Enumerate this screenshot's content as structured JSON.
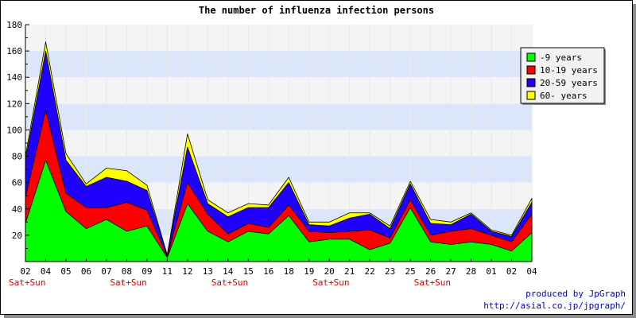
{
  "chart_data": {
    "type": "area",
    "stacked": true,
    "title": "The number of influenza infection persons",
    "xlabel": "",
    "ylabel": "",
    "ylim": [
      0,
      180
    ],
    "yticks": [
      20,
      40,
      60,
      80,
      100,
      120,
      140,
      160,
      180
    ],
    "grid": "horizontal bands",
    "legend_position": "right",
    "categories": [
      "02",
      "04",
      "05",
      "06",
      "07",
      "08",
      "09",
      "11",
      "12",
      "13",
      "14",
      "15",
      "16",
      "18",
      "19",
      "20",
      "21",
      "22",
      "23",
      "25",
      "26",
      "27",
      "28",
      "01",
      "02",
      "04"
    ],
    "weekend_labels": [
      {
        "index": 0,
        "text": "Sat+Sun"
      },
      {
        "index": 5,
        "text": "Sat+Sun"
      },
      {
        "index": 10,
        "text": "Sat+Sun"
      },
      {
        "index": 15,
        "text": "Sat+Sun"
      },
      {
        "index": 20,
        "text": "Sat+Sun"
      }
    ],
    "series": [
      {
        "name": "-9 years",
        "color": "#00ff00",
        "values": [
          29,
          77,
          38,
          25,
          32,
          23,
          27,
          3,
          44,
          23,
          15,
          23,
          21,
          35,
          15,
          17,
          17,
          9,
          14,
          41,
          15,
          13,
          15,
          13,
          8,
          22
        ]
      },
      {
        "name": "10-19 years",
        "color": "#ff0000",
        "values": [
          20,
          38,
          14,
          16,
          9,
          22,
          12,
          1,
          16,
          13,
          6,
          6,
          5,
          8,
          8,
          5,
          6,
          15,
          4,
          6,
          5,
          10,
          10,
          7,
          7,
          14
        ]
      },
      {
        "name": "20-59 years",
        "color": "#2000ff",
        "values": [
          28,
          45,
          25,
          16,
          23,
          16,
          15,
          1,
          27,
          8,
          13,
          12,
          15,
          17,
          5,
          5,
          10,
          12,
          7,
          12,
          9,
          5,
          11,
          3,
          4,
          9
        ]
      },
      {
        "name": "60- years",
        "color": "#ffff00",
        "values": [
          3,
          7,
          5,
          2,
          7,
          8,
          4,
          0,
          10,
          3,
          3,
          3,
          2,
          4,
          2,
          3,
          4,
          1,
          2,
          2,
          3,
          2,
          1,
          1,
          1,
          3
        ]
      }
    ]
  },
  "credits": {
    "line1": "produced by JpGraph",
    "line2": "http://asial.co.jp/jpgraph/"
  }
}
